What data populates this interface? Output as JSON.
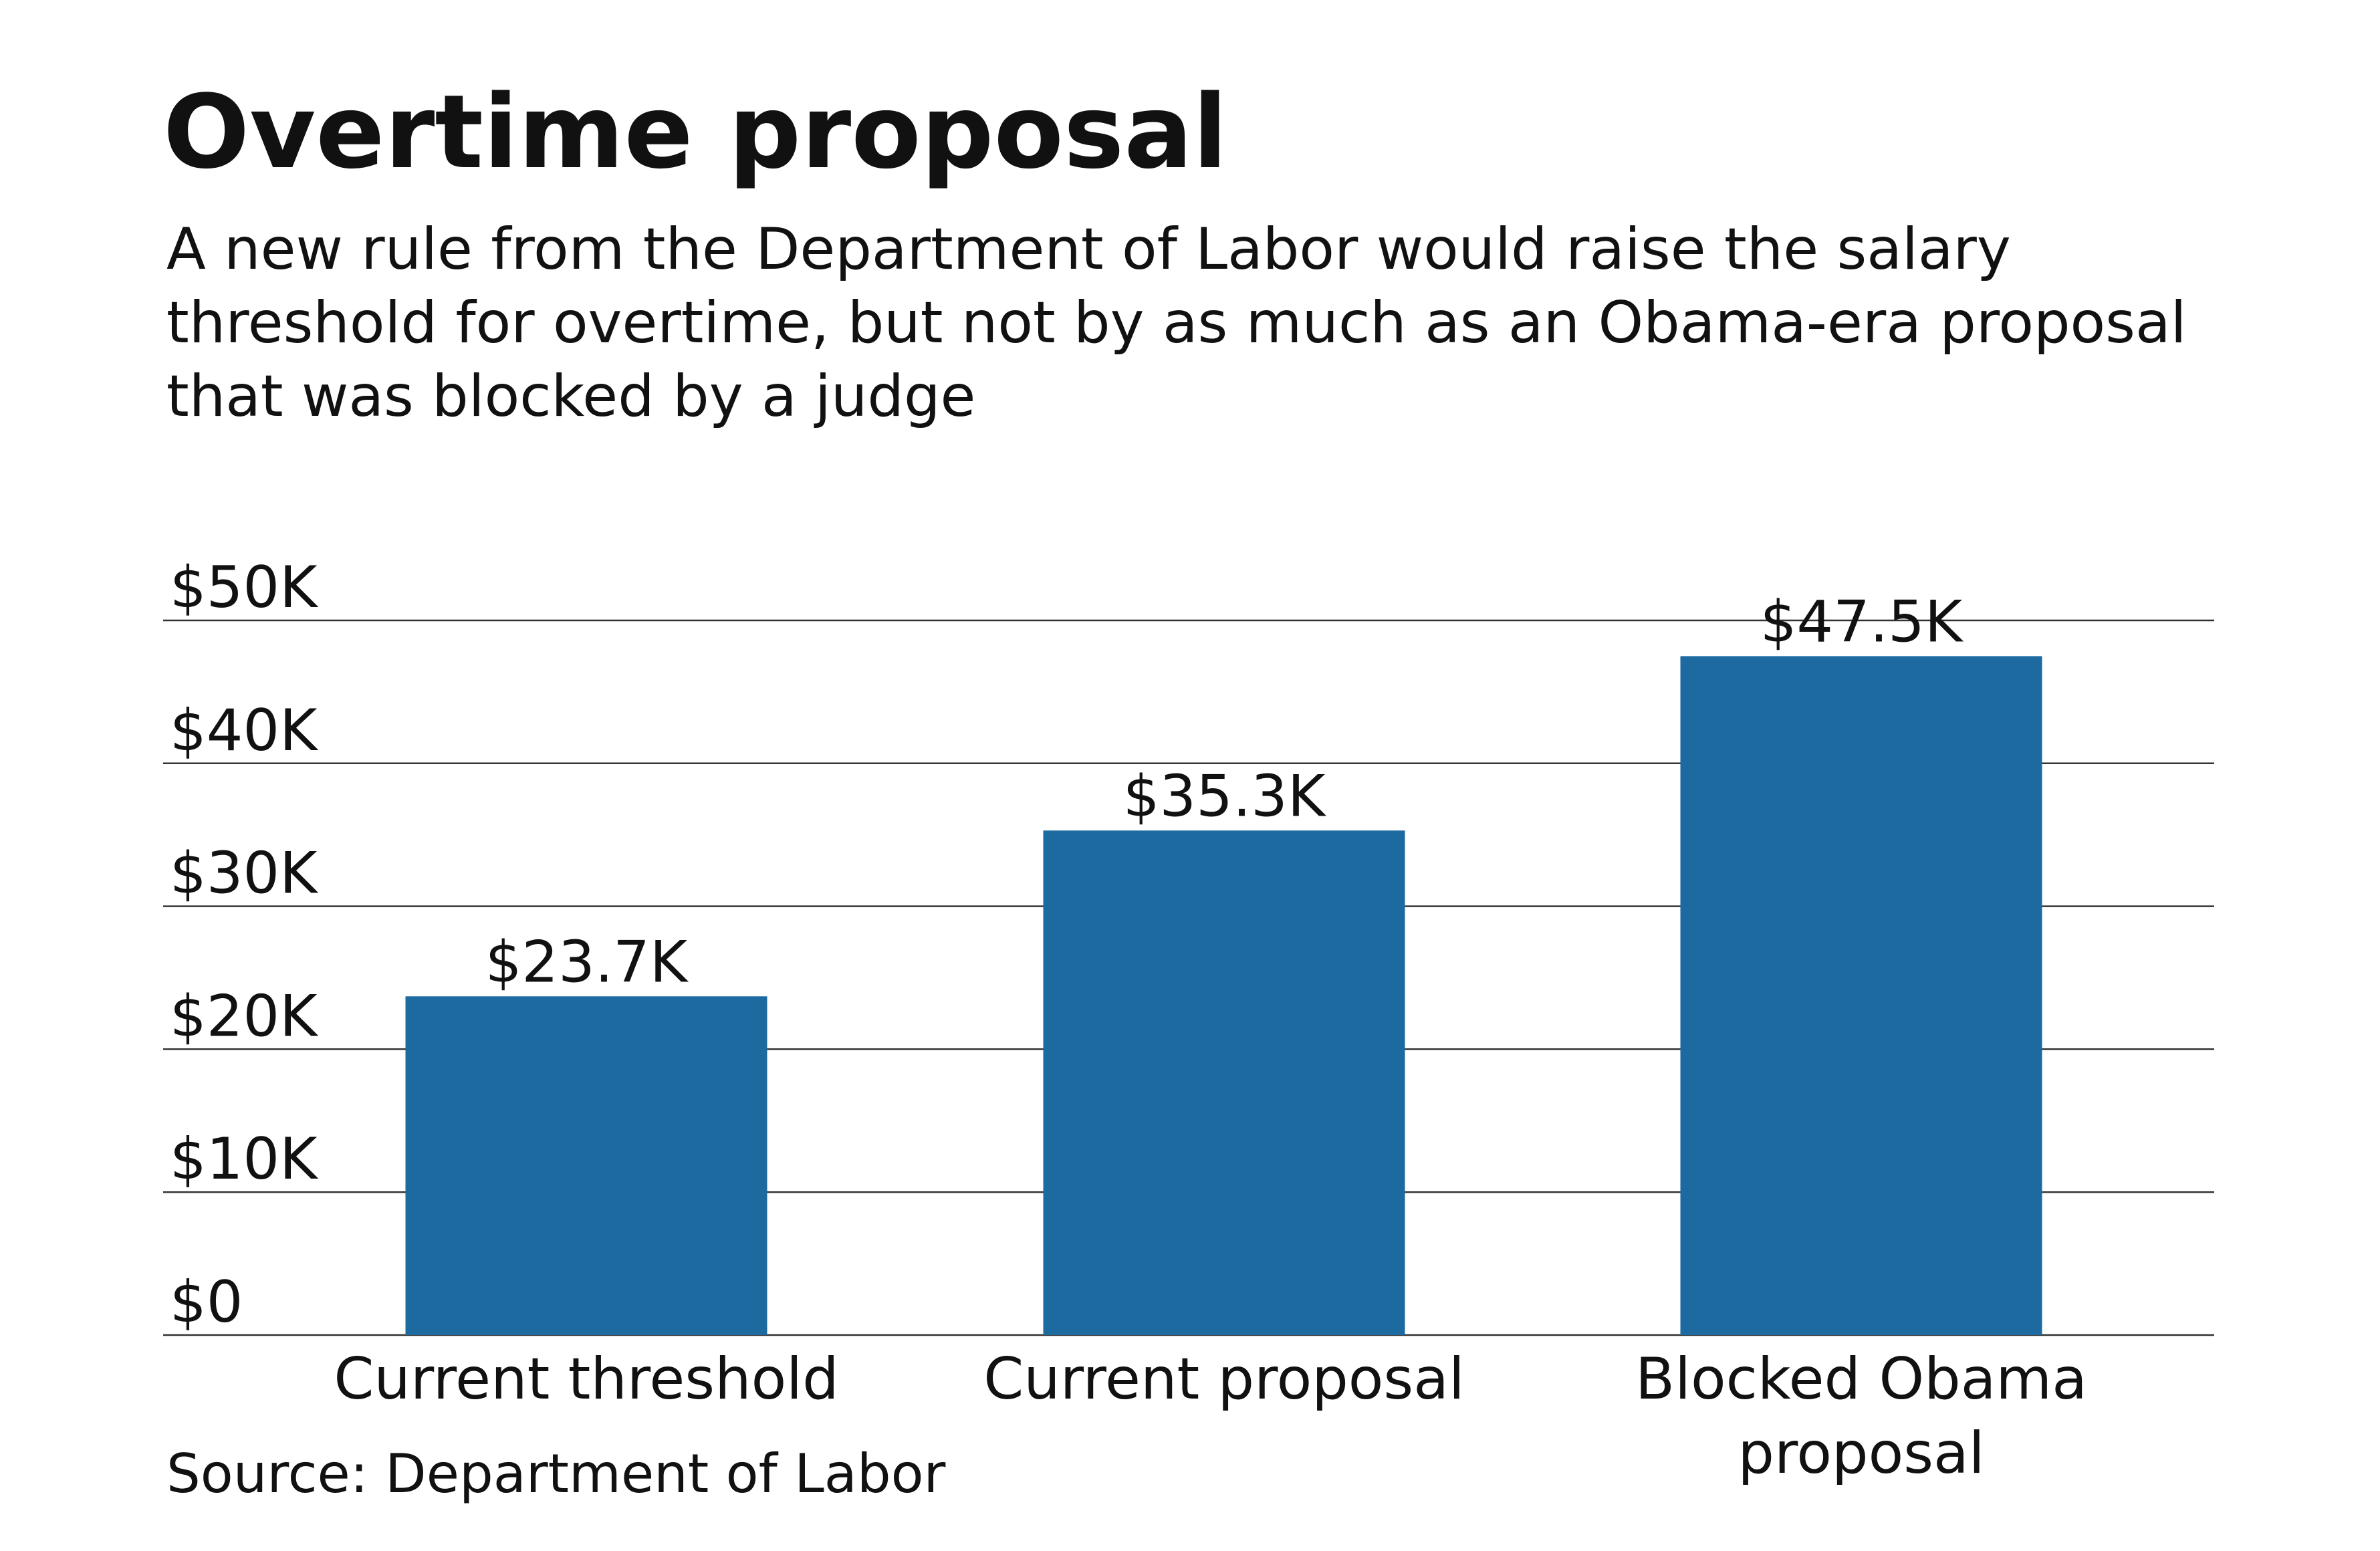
{
  "chart_data": {
    "type": "bar",
    "title": "Overtime proposal",
    "subtitle": "A new rule from the Department of Labor would raise the salary threshold for overtime, but not by as much as an Obama-era proposal that was blocked by a judge",
    "source": "Source: Department of Labor",
    "categories": [
      "Current threshold",
      "Current proposal",
      "Blocked Obama proposal"
    ],
    "values": [
      23700,
      35300,
      47500
    ],
    "value_labels": [
      "$23.7K",
      "$35.3K",
      "$47.5K"
    ],
    "color": "#1c6aa0",
    "ylim": [
      0,
      50000
    ],
    "yticks": [
      {
        "value": 0,
        "label": "$0"
      },
      {
        "value": 10000,
        "label": "$10K"
      },
      {
        "value": 20000,
        "label": "$20K"
      },
      {
        "value": 30000,
        "label": "$30K"
      },
      {
        "value": 40000,
        "label": "$40K"
      },
      {
        "value": 50000,
        "label": "$50K"
      }
    ],
    "grid": true
  }
}
